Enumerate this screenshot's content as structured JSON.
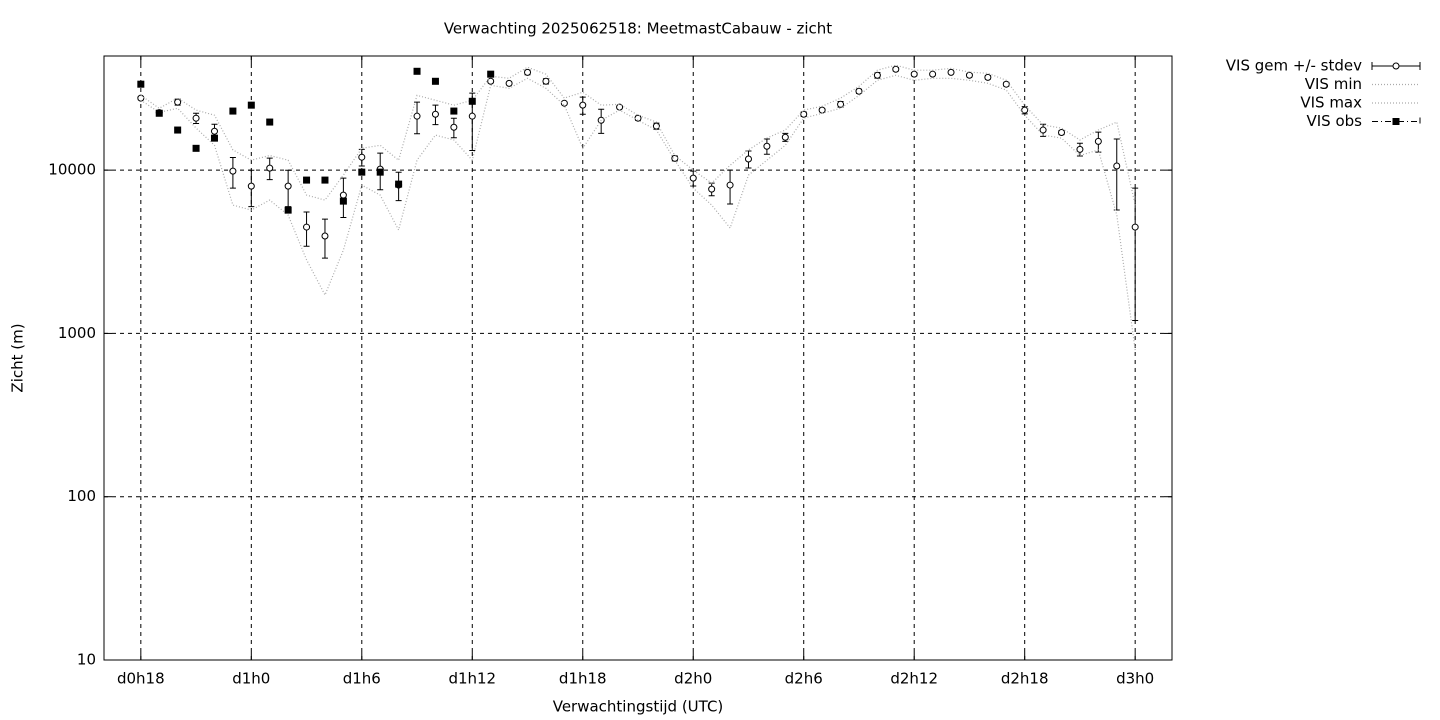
{
  "chart_data": {
    "type": "errorbar",
    "title": "Verwachting 2025062518: MeetmastCabauw - zicht",
    "x_label": "Verwachtingstijd (UTC)",
    "y_label": "Zicht (m)",
    "log_y": true,
    "grid": true,
    "legend": "outside-top-right",
    "xlim": [
      16,
      74
    ],
    "ylim": [
      10,
      50000
    ],
    "xticks": [
      {
        "value": 18,
        "label": "d0h18"
      },
      {
        "value": 24,
        "label": "d1h0"
      },
      {
        "value": 30,
        "label": "d1h6"
      },
      {
        "value": 36,
        "label": "d1h12"
      },
      {
        "value": 42,
        "label": "d1h18"
      },
      {
        "value": 48,
        "label": "d2h0"
      },
      {
        "value": 54,
        "label": "d2h6"
      },
      {
        "value": 60,
        "label": "d2h12"
      },
      {
        "value": 66,
        "label": "d2h18"
      },
      {
        "value": 72,
        "label": "d3h0"
      }
    ],
    "yticks": [
      10,
      100,
      1000,
      10000
    ],
    "x": [
      18,
      19,
      20,
      21,
      22,
      23,
      24,
      25,
      26,
      27,
      28,
      29,
      30,
      31,
      32,
      33,
      34,
      35,
      36,
      37,
      38,
      39,
      40,
      41,
      42,
      43,
      44,
      45,
      46,
      47,
      48,
      49,
      50,
      51,
      52,
      53,
      54,
      55,
      56,
      57,
      58,
      59,
      60,
      61,
      62,
      63,
      64,
      65,
      66,
      67,
      68,
      69,
      70,
      71,
      72
    ],
    "series": [
      {
        "name": "VIS gem +/- stdev",
        "color": "#000000",
        "style": "errorbars",
        "values": [
          27600,
          22500,
          26100,
          20800,
          17300,
          9860,
          7980,
          10290,
          7980,
          4480,
          3950,
          7030,
          12000,
          10140,
          8100,
          21400,
          22000,
          18300,
          21400,
          35000,
          34000,
          39700,
          35000,
          25700,
          25000,
          20200,
          24300,
          20800,
          18600,
          11800,
          8930,
          7650,
          8100,
          11700,
          14000,
          15900,
          22000,
          23300,
          25300,
          30400,
          38100,
          41500,
          38700,
          38700,
          39700,
          38100,
          37000,
          33600,
          23300,
          17600,
          17000,
          13400,
          15000,
          10600,
          4480
        ],
        "stdev": [
          600,
          700,
          1100,
          1500,
          1800,
          2100,
          2000,
          1550,
          2000,
          1060,
          1060,
          1900,
          1400,
          2560,
          1600,
          4700,
          3000,
          2500,
          8200,
          800,
          600,
          1300,
          1300,
          500,
          3000,
          3400,
          500,
          600,
          800,
          400,
          930,
          680,
          1900,
          1400,
          1500,
          900,
          700,
          500,
          1000,
          900,
          1500,
          1000,
          900,
          700,
          800,
          900,
          900,
          900,
          1200,
          1500,
          500,
          1200,
          2100,
          4900,
          3280
        ]
      },
      {
        "name": "VIS min",
        "color": "#aaaaaa",
        "style": "dotted",
        "values": [
          26800,
          22600,
          23900,
          18100,
          14200,
          6110,
          5690,
          6550,
          5310,
          2820,
          1720,
          3240,
          8100,
          7030,
          4300,
          11500,
          16400,
          15300,
          11500,
          33100,
          31700,
          36500,
          31700,
          25000,
          13600,
          20200,
          23300,
          20200,
          17600,
          11500,
          7760,
          6110,
          4420,
          9320,
          11500,
          14200,
          20800,
          22300,
          23900,
          28700,
          35500,
          38100,
          35500,
          36500,
          36500,
          35500,
          34000,
          30900,
          21700,
          16400,
          15700,
          12300,
          13300,
          5310,
          790
        ]
      },
      {
        "name": "VIS max",
        "color": "#aaaaaa",
        "style": "dotted",
        "values": [
          28700,
          23900,
          27600,
          23300,
          21700,
          13300,
          11500,
          12300,
          11500,
          7030,
          6550,
          9320,
          13600,
          14200,
          11500,
          28700,
          26800,
          25000,
          26800,
          37600,
          36500,
          42700,
          38700,
          27600,
          30000,
          25000,
          25300,
          21700,
          19700,
          12300,
          10000,
          8330,
          10700,
          13300,
          15700,
          17600,
          23300,
          24600,
          27600,
          32600,
          40900,
          43900,
          40900,
          40900,
          42000,
          39800,
          39200,
          35500,
          25000,
          18900,
          18100,
          15300,
          17600,
          19700,
          6110
        ]
      },
      {
        "name": "VIS obs",
        "color": "#000000",
        "style": "squares",
        "values": [
          33600,
          22300,
          17600,
          13600,
          15700,
          23000,
          25000,
          19700,
          5690,
          8690,
          8690,
          6460,
          9720,
          9720,
          8210,
          40300,
          35000,
          23000,
          26400,
          38700,
          null,
          null,
          null,
          null,
          null,
          null,
          null,
          null,
          null,
          null,
          null,
          null,
          null,
          null,
          null,
          null,
          null,
          null,
          null,
          null,
          null,
          null,
          null,
          null,
          null,
          null,
          null,
          null,
          null,
          null,
          null,
          null,
          null,
          null,
          null
        ]
      }
    ]
  }
}
